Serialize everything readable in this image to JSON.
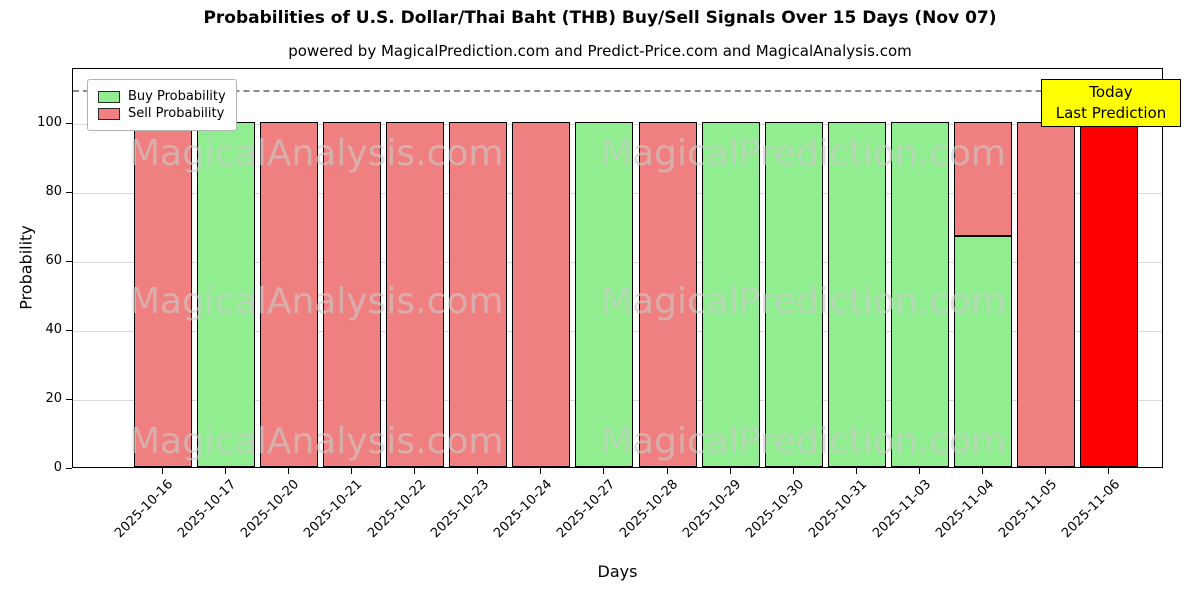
{
  "title": "Probabilities of U.S. Dollar/Thai Baht (THB) Buy/Sell Signals Over 15 Days (Nov 07)",
  "subtitle": "powered by MagicalPrediction.com and Predict-Price.com and MagicalAnalysis.com",
  "axes": {
    "xlabel": "Days",
    "ylabel": "Probability"
  },
  "legend": {
    "buy": "Buy Probability",
    "sell": "Sell Probability"
  },
  "annotation": {
    "line1": "Today",
    "line2": "Last Prediction"
  },
  "watermarks": [
    "MagicalAnalysis.com",
    "MagicalPrediction.com"
  ],
  "colors": {
    "buy": "#90EE90",
    "sell": "#F08080",
    "today": "#FF0000",
    "annotation_bg": "#FFFF00",
    "watermark": "#CCCCCC",
    "grid": "#D9D9D9"
  },
  "chart_data": {
    "type": "bar",
    "stacked": true,
    "title": "Probabilities of U.S. Dollar/Thai Baht (THB) Buy/Sell Signals Over 15 Days (Nov 07)",
    "xlabel": "Days",
    "ylabel": "Probability",
    "categories": [
      "2025-10-16",
      "2025-10-17",
      "2025-10-20",
      "2025-10-21",
      "2025-10-22",
      "2025-10-23",
      "2025-10-24",
      "2025-10-27",
      "2025-10-28",
      "2025-10-29",
      "2025-10-30",
      "2025-10-31",
      "2025-11-03",
      "2025-11-04",
      "2025-11-05",
      "2025-11-06"
    ],
    "series": [
      {
        "name": "Buy Probability",
        "key": "buy",
        "color": "#90EE90",
        "values": [
          0,
          100,
          0,
          0,
          0,
          0,
          0,
          100,
          0,
          100,
          100,
          100,
          100,
          67,
          0,
          0
        ]
      },
      {
        "name": "Sell Probability",
        "key": "sell",
        "color": "#F08080",
        "values": [
          100,
          0,
          100,
          100,
          100,
          100,
          100,
          0,
          100,
          0,
          0,
          0,
          0,
          33,
          100,
          0
        ]
      },
      {
        "name": "Today / Last Prediction",
        "key": "today",
        "color": "#FF0000",
        "values": [
          0,
          0,
          0,
          0,
          0,
          0,
          0,
          0,
          0,
          0,
          0,
          0,
          0,
          0,
          0,
          100
        ]
      }
    ],
    "yticks": [
      0,
      20,
      40,
      60,
      80,
      100
    ],
    "ylim": [
      0,
      116
    ],
    "dashed_line_y": 110,
    "grid": "horizontal",
    "legend_position": "upper left"
  }
}
